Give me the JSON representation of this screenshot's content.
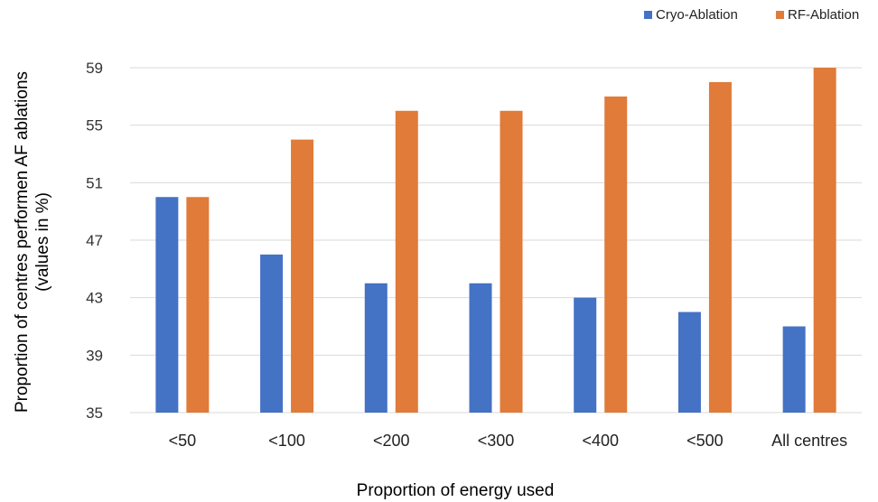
{
  "chart_data": {
    "type": "bar",
    "title": "",
    "xlabel": "Proportion of energy used",
    "ylabel_line1": "Proportion of centres performen AF ablations",
    "ylabel_line2": "(values in %)",
    "categories": [
      "<50",
      "<100",
      "<200",
      "<300",
      "<400",
      "<500",
      "All centres"
    ],
    "series": [
      {
        "name": "Cryo-Ablation",
        "color": "#4472c4",
        "values": [
          50,
          46,
          44,
          44,
          43,
          42,
          41
        ]
      },
      {
        "name": "RF-Ablation",
        "color": "#e07b39",
        "values": [
          50,
          54,
          56,
          56,
          57,
          58,
          59
        ]
      }
    ],
    "ylim": [
      35,
      59
    ],
    "yticks": [
      35,
      39,
      43,
      47,
      51,
      55,
      59
    ],
    "grid": true,
    "legend_position": "top-right"
  }
}
